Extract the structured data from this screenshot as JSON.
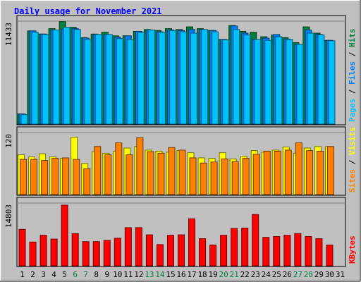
{
  "chart_data": {
    "type": "bar",
    "title": "Daily usage for November 2021",
    "days": [
      "1",
      "2",
      "3",
      "4",
      "5",
      "6",
      "7",
      "8",
      "9",
      "10",
      "11",
      "12",
      "13",
      "14",
      "15",
      "16",
      "17",
      "18",
      "19",
      "20",
      "21",
      "22",
      "23",
      "24",
      "25",
      "26",
      "27",
      "28",
      "29",
      "30",
      "31"
    ],
    "weekend_days": [
      "6",
      "7",
      "13",
      "14",
      "20",
      "21",
      "27",
      "28"
    ],
    "panels": [
      {
        "id": "top",
        "max_label": "11433",
        "ymax": 11433,
        "legend": [
          "Pages",
          "Files",
          "Hits"
        ],
        "legend_separator": "/",
        "series": [
          {
            "name": "Hits",
            "color": "#008040",
            "values": [
              1130,
              10350,
              10000,
              10600,
              11370,
              10750,
              9600,
              10000,
              10200,
              9800,
              9800,
              10300,
              10500,
              10400,
              10600,
              10500,
              10800,
              10600,
              10400,
              9400,
              10950,
              10300,
              10200,
              9700,
              9900,
              9600,
              9050,
              10800,
              10100,
              9300,
              null
            ]
          },
          {
            "name": "Files",
            "color": "#0080ff",
            "values": [
              1130,
              10350,
              10000,
              10450,
              10550,
              10600,
              9550,
              9950,
              9950,
              9650,
              9800,
              10300,
              10450,
              10250,
              10450,
              10400,
              10500,
              10500,
              10400,
              9400,
              10900,
              10100,
              9400,
              9550,
              9950,
              9450,
              8850,
              10450,
              9950,
              9300,
              null
            ]
          },
          {
            "name": "Pages",
            "color": "#00c0ff",
            "values": [
              1050,
              10200,
              9950,
              10450,
              10750,
              10500,
              9400,
              9950,
              9950,
              9500,
              9400,
              10150,
              10450,
              10200,
              10400,
              10250,
              10100,
              10500,
              10250,
              9350,
              10500,
              9900,
              9400,
              9300,
              9700,
              9400,
              8850,
              10100,
              9900,
              9250,
              null
            ]
          }
        ]
      },
      {
        "id": "mid",
        "max_label": "120",
        "ymax": 120,
        "legend": [
          "Sites",
          "Visits"
        ],
        "legend_separator": "/",
        "series": [
          {
            "name": "Visits",
            "color": "#ffff00",
            "values": [
              77,
              73,
              79,
              73,
              70,
              111,
              60,
              83,
              80,
              84,
              90,
              93,
              86,
              84,
              82,
              85,
              81,
              71,
              70,
              81,
              69,
              74,
              85,
              82,
              86,
              92,
              80,
              90,
              93,
              93,
              null
            ]
          },
          {
            "name": "Sites",
            "color": "#ff8000",
            "values": [
              68,
              68,
              66,
              70,
              71,
              68,
              50,
              93,
              77,
              100,
              77,
              110,
              83,
              80,
              91,
              86,
              71,
              61,
              63,
              69,
              64,
              70,
              78,
              84,
              84,
              86,
              100,
              85,
              84,
              93,
              null
            ]
          }
        ]
      },
      {
        "id": "bot",
        "max_label": "14803",
        "ymax": 14803,
        "legend": [
          "KBytes"
        ],
        "legend_separator": "/",
        "series": [
          {
            "name": "KBytes",
            "color": "#ff0000",
            "values": [
              8600,
              5600,
              7200,
              6300,
              14300,
              7600,
              5700,
              5700,
              6000,
              6500,
              9000,
              9000,
              7300,
              5000,
              7200,
              7300,
              11100,
              6400,
              4900,
              7200,
              8800,
              8900,
              12100,
              6700,
              6900,
              7200,
              7600,
              6900,
              6400,
              4900,
              null
            ]
          }
        ]
      }
    ],
    "colors": {
      "background": "#c0c0c0",
      "plot_background": "#c0c0c0",
      "title": "#0000ff",
      "axis_text": "#000000",
      "weekend_text": "#008040"
    }
  }
}
